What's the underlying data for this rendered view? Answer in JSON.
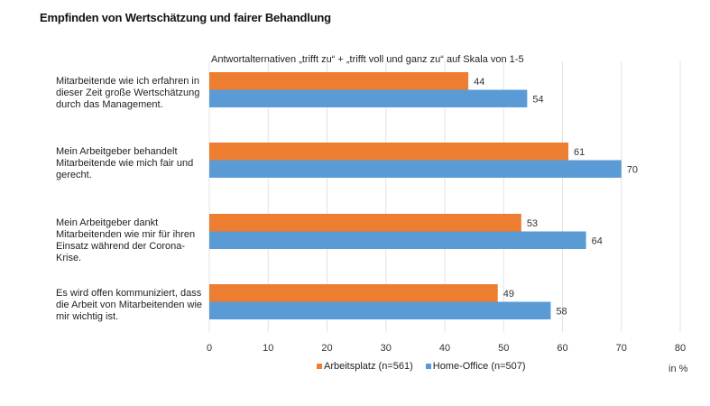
{
  "chart_data": {
    "type": "bar",
    "orientation": "horizontal",
    "title": "Empfinden von Wertschätzung und fairer Behandlung",
    "subtitle": "Antwortalternativen  „trifft zu“ + „trifft voll und ganz zu“ auf Skala von 1-5",
    "categories": [
      "Mitarbeitende wie ich erfahren  in dieser Zeit große Wertschätzung durch das Management.",
      "Mein Arbeitgeber behandelt Mitarbeitende wie mich fair und gerecht.",
      "Mein Arbeitgeber dankt Mitarbeitenden wie mir für ihren Einsatz während der Corona-Krise.",
      "Es wird offen kommuniziert, dass die Arbeit von Mitarbeitenden wie mir wichtig ist."
    ],
    "series": [
      {
        "name": "Arbeitsplatz (n=561)",
        "color": "#ED7D31",
        "values": [
          44,
          61,
          53,
          49
        ]
      },
      {
        "name": "Home-Office (n=507)",
        "color": "#5B9BD5",
        "values": [
          54,
          70,
          64,
          58
        ]
      }
    ],
    "xlabel": "in %",
    "ylabel": "",
    "xlim": [
      0,
      80
    ],
    "xticks": [
      "0",
      "10",
      "20",
      "30",
      "40",
      "50",
      "60",
      "70",
      "80"
    ],
    "grid": true,
    "legend_position": "bottom"
  }
}
